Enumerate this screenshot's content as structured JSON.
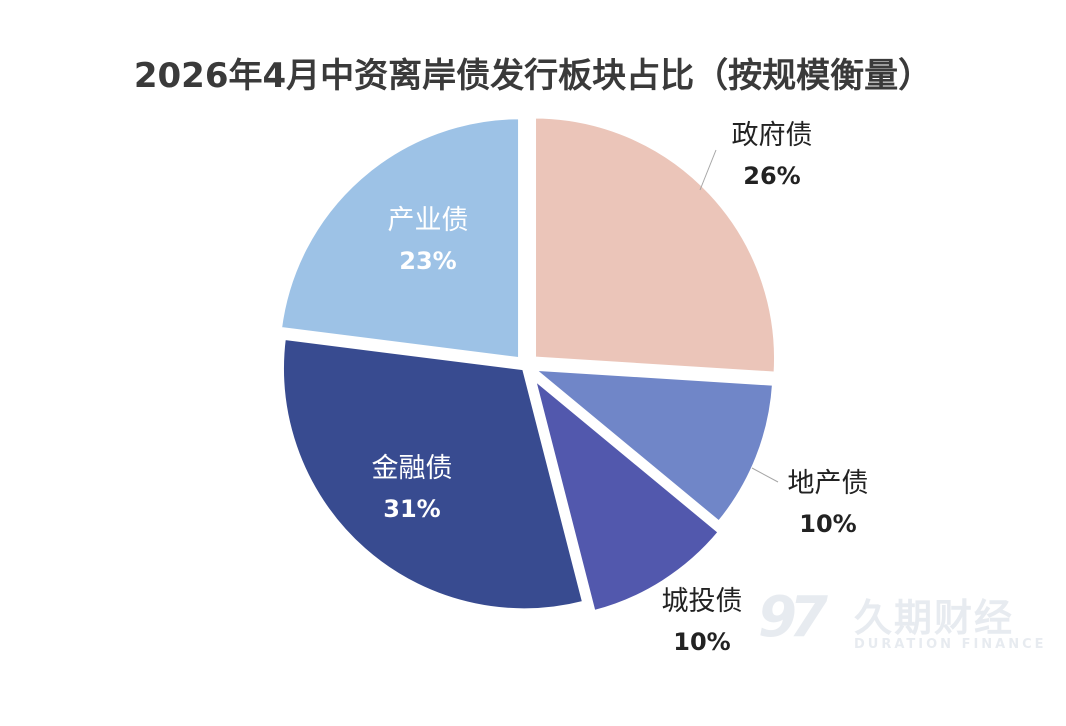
{
  "chart_data": {
    "type": "pie",
    "title": "2026年4月中资离岸债发行板块占比（按规模衡量）",
    "slices": [
      {
        "label": "政府债",
        "value": 26,
        "value_label": "26%",
        "color": "#ebc5b9"
      },
      {
        "label": "地产债",
        "value": 10,
        "value_label": "10%",
        "color": "#7086c8"
      },
      {
        "label": "城投债",
        "value": 10,
        "value_label": "10%",
        "color": "#5258ad"
      },
      {
        "label": "金融债",
        "value": 31,
        "value_label": "31%",
        "color": "#384b90"
      },
      {
        "label": "产业债",
        "value": 23,
        "value_label": "23%",
        "color": "#9dc2e6"
      }
    ],
    "legend": "none",
    "start_angle_deg": 0,
    "direction": "clockwise"
  },
  "watermark": {
    "mark": "97",
    "name_cn": "久期财经",
    "name_en": "DURATION FINANCE"
  }
}
